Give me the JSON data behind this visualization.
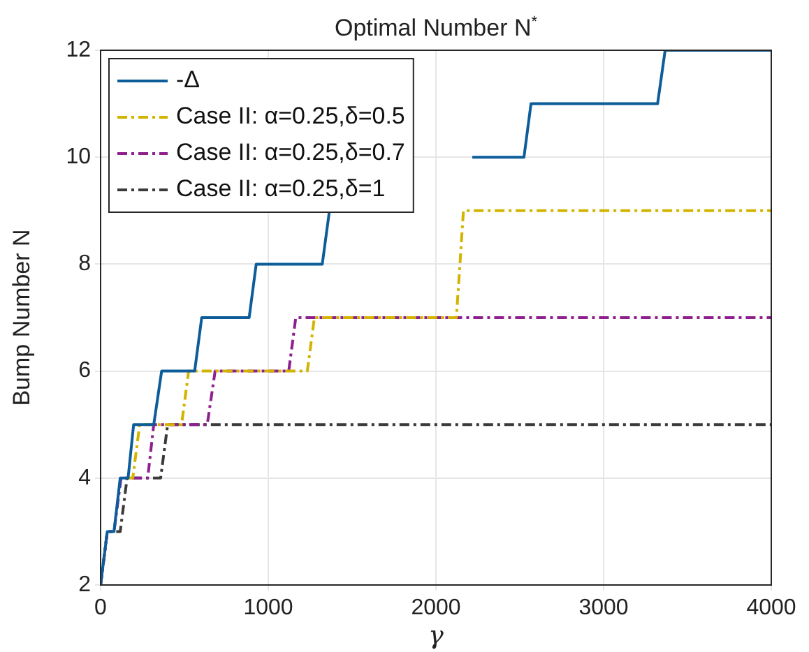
{
  "chart_data": {
    "type": "line",
    "title": "Optimal Number N$^{*}$",
    "xlabel": "γ",
    "ylabel": "Bump Number N",
    "xlim": [
      0,
      4000
    ],
    "xticks": [
      0,
      1000,
      2000,
      3000,
      4000
    ],
    "ylim": [
      2,
      12
    ],
    "yticks": [
      2,
      4,
      6,
      8,
      10,
      12
    ],
    "grid": true,
    "legend": "top left",
    "marker": "none",
    "series": [
      {
        "name": "-Δ",
        "color": "#0c5d9a",
        "line_style": "solid",
        "x": [
          0,
          40,
          80,
          117,
          164,
          197,
          317,
          364,
          561,
          603,
          886,
          928,
          1322,
          1365,
          1366,
          2217,
          2525,
          2567,
          3322,
          3367,
          4000
        ],
        "values": [
          2,
          3,
          3,
          4,
          4,
          5,
          5,
          6,
          6,
          7,
          7,
          8,
          8,
          9,
          null,
          10,
          10,
          11,
          11,
          12,
          12
        ]
      },
      {
        "name": "Case II: α=0.25,δ=0.5",
        "color": "#d2b400",
        "line_style": "dashed",
        "x": [
          164,
          192,
          233,
          483,
          525,
          1233,
          1275,
          2122,
          2164,
          4000
        ],
        "values": [
          4,
          4,
          5,
          5,
          6,
          6,
          7,
          7,
          9,
          9
        ]
      },
      {
        "name": "Case II: α=0.25,δ=0.7",
        "color": "#8e1f8e",
        "line_style": "dashed",
        "x": [
          0,
          40,
          80,
          122,
          281,
          317,
          636,
          683,
          1122,
          1164,
          4000
        ],
        "values": [
          2,
          3,
          3,
          4,
          4,
          5,
          5,
          6,
          6,
          7,
          7
        ]
      },
      {
        "name": "Case II: α=0.25,δ=1",
        "color": "#3a3a3a",
        "line_style": "dashed",
        "x": [
          0,
          40,
          117,
          158,
          358,
          400,
          4000
        ],
        "values": [
          2,
          3,
          3,
          4,
          4,
          5,
          5
        ]
      }
    ]
  }
}
